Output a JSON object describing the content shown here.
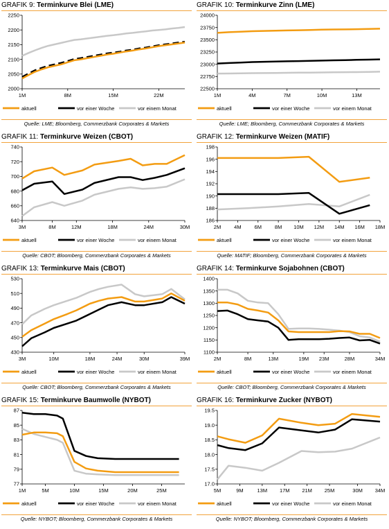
{
  "legend": {
    "aktuell": "aktuell",
    "week": "vor einer Woche",
    "month": "vor einem Monat"
  },
  "colors": {
    "aktuell": "#f39c12",
    "week": "#000000",
    "month": "#c8c8c8",
    "accent": "#f2a23a"
  },
  "chart_data": [
    {
      "type": "line",
      "label": "GRAFIK 9:",
      "title": "Terminkurve Blei (LME)",
      "source": "Quelle: LME; Bloomberg, Commerzbank Corporates & Markets",
      "ylim": [
        2000,
        2250
      ],
      "yticks": [
        2000,
        2050,
        2100,
        2150,
        2200,
        2250
      ],
      "xlim": [
        1,
        26
      ],
      "xticks": [
        1,
        8,
        15,
        22
      ],
      "xticklabels": [
        "1M",
        "8M",
        "15M",
        "22M"
      ],
      "series": [
        {
          "name": "aktuell",
          "x": [
            1,
            2,
            3,
            4,
            5,
            6,
            7,
            8,
            9,
            10,
            11,
            12,
            13,
            14,
            15,
            16,
            17,
            18,
            19,
            20,
            21,
            22,
            23,
            24,
            25,
            26
          ],
          "y": [
            2035,
            2047,
            2058,
            2066,
            2073,
            2078,
            2083,
            2090,
            2097,
            2100,
            2104,
            2108,
            2112,
            2116,
            2119,
            2123,
            2127,
            2130,
            2134,
            2137,
            2141,
            2145,
            2148,
            2151,
            2154,
            2157
          ]
        },
        {
          "name": "vor einer Woche",
          "dash": true,
          "x": [
            1,
            2,
            3,
            4,
            5,
            6,
            7,
            8,
            9,
            10,
            11,
            12,
            13,
            14,
            15,
            16,
            17,
            18,
            19,
            20,
            21,
            22,
            23,
            24,
            25,
            26
          ],
          "y": [
            2040,
            2052,
            2063,
            2071,
            2078,
            2083,
            2088,
            2094,
            2101,
            2104,
            2108,
            2112,
            2116,
            2120,
            2123,
            2126,
            2130,
            2133,
            2137,
            2140,
            2144,
            2148,
            2151,
            2154,
            2157,
            2160
          ]
        },
        {
          "name": "vor einem Monat",
          "x": [
            1,
            2,
            3,
            4,
            5,
            6,
            7,
            8,
            9,
            10,
            11,
            12,
            13,
            14,
            15,
            16,
            17,
            18,
            19,
            20,
            21,
            22,
            23,
            24,
            25,
            26
          ],
          "y": [
            2112,
            2122,
            2131,
            2139,
            2146,
            2151,
            2156,
            2161,
            2166,
            2168,
            2171,
            2174,
            2177,
            2180,
            2182,
            2185,
            2188,
            2190,
            2193,
            2195,
            2198,
            2200,
            2202,
            2205,
            2207,
            2210
          ]
        }
      ]
    },
    {
      "type": "line",
      "label": "GRAFIK 10:",
      "title": "Terminkurve Zinn (LME)",
      "source": "Quelle: LME; Bloomberg, Commerzbank Corporates & Markets",
      "ylim": [
        22500,
        24000
      ],
      "yticks": [
        22500,
        22750,
        23000,
        23250,
        23500,
        23750,
        24000
      ],
      "xlim": [
        1,
        15
      ],
      "xticks": [
        1,
        4,
        7,
        10,
        13
      ],
      "xticklabels": [
        "1M",
        "4M",
        "7M",
        "10M",
        "13M"
      ],
      "series": [
        {
          "name": "aktuell",
          "x": [
            1,
            2,
            3,
            4,
            5,
            6,
            7,
            8,
            9,
            10,
            11,
            12,
            13,
            14,
            15
          ],
          "y": [
            23640,
            23655,
            23665,
            23675,
            23680,
            23685,
            23690,
            23695,
            23700,
            23705,
            23710,
            23712,
            23715,
            23720,
            23725
          ]
        },
        {
          "name": "vor einer Woche",
          "x": [
            1,
            2,
            3,
            4,
            5,
            6,
            7,
            8,
            9,
            10,
            11,
            12,
            13,
            14,
            15
          ],
          "y": [
            23015,
            23025,
            23035,
            23045,
            23050,
            23055,
            23060,
            23065,
            23070,
            23075,
            23080,
            23085,
            23090,
            23095,
            23100
          ]
        },
        {
          "name": "vor einem Monat",
          "x": [
            1,
            2,
            3,
            4,
            5,
            6,
            7,
            8,
            9,
            10,
            11,
            12,
            13,
            14,
            15
          ],
          "y": [
            22810,
            22812,
            22815,
            22818,
            22820,
            22823,
            22825,
            22828,
            22830,
            22833,
            22835,
            22838,
            22840,
            22843,
            22848
          ]
        }
      ]
    },
    {
      "type": "line",
      "label": "GRAFIK 11:",
      "title": "Terminkurve Weizen (CBOT)",
      "source": "Quelle: CBOT; Bloomberg, Commerzbank Corporates & Markets",
      "ylim": [
        640,
        740
      ],
      "yticks": [
        640,
        660,
        680,
        700,
        720,
        740
      ],
      "xlim": [
        3,
        30
      ],
      "xticks": [
        3,
        8,
        12,
        18,
        24,
        30
      ],
      "xticklabels": [
        "3M",
        "8M",
        "12M",
        "18M",
        "24M",
        "30M"
      ],
      "series": [
        {
          "name": "aktuell",
          "x": [
            3,
            5,
            8,
            10,
            13,
            15,
            19,
            21,
            23,
            25,
            27,
            30
          ],
          "y": [
            697,
            707,
            712,
            702,
            708,
            716,
            721,
            724,
            715,
            717,
            717,
            729
          ]
        },
        {
          "name": "vor einer Woche",
          "x": [
            3,
            5,
            8,
            10,
            13,
            15,
            19,
            21,
            23,
            25,
            27,
            30
          ],
          "y": [
            681,
            690,
            693,
            676,
            682,
            691,
            699,
            699,
            695,
            698,
            702,
            711
          ]
        },
        {
          "name": "vor einem Monat",
          "x": [
            3,
            5,
            8,
            10,
            13,
            15,
            19,
            21,
            23,
            25,
            27,
            30
          ],
          "y": [
            646,
            658,
            665,
            660,
            667,
            675,
            683,
            685,
            683,
            684,
            686,
            696
          ]
        }
      ]
    },
    {
      "type": "line",
      "label": "GRAFIK 12:",
      "title": "Terminkurve Weizen (MATIF)",
      "source": "Quelle: MATIF; Bloomberg, Commerzbank Corporates & Markets",
      "ylim": [
        186,
        198
      ],
      "yticks": [
        186,
        188,
        190,
        192,
        194,
        196,
        198
      ],
      "xlim": [
        2,
        18
      ],
      "xticks": [
        2,
        4,
        6,
        8,
        10,
        12,
        14,
        16,
        18
      ],
      "xticklabels": [
        "2M",
        "4M",
        "6M",
        "8M",
        "10M",
        "12M",
        "14M",
        "16M",
        "18M"
      ],
      "series": [
        {
          "name": "aktuell",
          "x": [
            2,
            5,
            8,
            11,
            14,
            17
          ],
          "y": [
            196.2,
            196.2,
            196.2,
            196.4,
            192.3,
            193.0
          ]
        },
        {
          "name": "vor einer Woche",
          "x": [
            2,
            5,
            8,
            11,
            14,
            17
          ],
          "y": [
            190.3,
            190.3,
            190.3,
            190.5,
            187.1,
            188.5
          ]
        },
        {
          "name": "vor einem Monat",
          "x": [
            2,
            5,
            8,
            11,
            14,
            17
          ],
          "y": [
            187.8,
            188.0,
            188.3,
            188.7,
            188.3,
            190.2
          ]
        }
      ]
    },
    {
      "type": "line",
      "label": "GRAFIK 13:",
      "title": "Terminkurve Mais (CBOT)",
      "source": "Quelle: CBOT; Bloomberg, Commerzbank Corporates & Markets",
      "ylim": [
        430,
        530
      ],
      "yticks": [
        430,
        450,
        470,
        490,
        510,
        530
      ],
      "xlim": [
        3,
        39
      ],
      "xticks": [
        3,
        10,
        18,
        24,
        30,
        39
      ],
      "xticklabels": [
        "3M",
        "10M",
        "18M",
        "24M",
        "30M",
        "39M"
      ],
      "series": [
        {
          "name": "aktuell",
          "x": [
            3,
            5,
            8,
            10,
            13,
            15,
            18,
            20,
            22,
            25,
            28,
            30,
            34,
            36,
            39
          ],
          "y": [
            451,
            460,
            469,
            475,
            482,
            487,
            496,
            500,
            503,
            505,
            499,
            499,
            503,
            510,
            500
          ]
        },
        {
          "name": "vor einer Woche",
          "x": [
            3,
            5,
            8,
            10,
            13,
            15,
            18,
            20,
            22,
            25,
            28,
            30,
            34,
            36,
            39
          ],
          "y": [
            438,
            449,
            457,
            463,
            469,
            473,
            482,
            488,
            494,
            498,
            494,
            494,
            498,
            505,
            496
          ]
        },
        {
          "name": "vor einem Monat",
          "x": [
            3,
            5,
            8,
            10,
            13,
            15,
            18,
            20,
            22,
            25,
            28,
            30,
            34,
            36,
            39
          ],
          "y": [
            468,
            480,
            489,
            494,
            500,
            504,
            512,
            516,
            519,
            522,
            509,
            506,
            509,
            516,
            502
          ]
        }
      ]
    },
    {
      "type": "line",
      "label": "GRAFIK 14:",
      "title": "Terminkurve Sojabohnen (CBOT)",
      "source": "Quelle: CBOT; Bloomberg, Commerzbank Corporates & Markets",
      "ylim": [
        1100,
        1400
      ],
      "yticks": [
        1100,
        1150,
        1200,
        1250,
        1300,
        1350,
        1400
      ],
      "xlim": [
        2,
        34
      ],
      "xticks": [
        2,
        8,
        13,
        19,
        23,
        28,
        34
      ],
      "xticklabels": [
        "2M",
        "8M",
        "13M",
        "19M",
        "23M",
        "28M",
        "34M"
      ],
      "series": [
        {
          "name": "aktuell",
          "x": [
            2,
            4,
            6,
            8,
            10,
            12,
            14,
            16,
            18,
            20,
            22,
            24,
            26,
            28,
            30,
            32,
            34
          ],
          "y": [
            1303,
            1303,
            1295,
            1277,
            1270,
            1262,
            1230,
            1185,
            1182,
            1182,
            1182,
            1182,
            1186,
            1185,
            1175,
            1175,
            1158
          ]
        },
        {
          "name": "vor einer Woche",
          "x": [
            2,
            4,
            6,
            8,
            10,
            12,
            14,
            16,
            18,
            20,
            22,
            24,
            26,
            28,
            30,
            32,
            34
          ],
          "y": [
            1268,
            1270,
            1255,
            1235,
            1230,
            1225,
            1200,
            1150,
            1153,
            1153,
            1153,
            1155,
            1158,
            1160,
            1148,
            1150,
            1135
          ]
        },
        {
          "name": "vor einem Monat",
          "x": [
            2,
            4,
            6,
            8,
            10,
            12,
            14,
            16,
            18,
            20,
            22,
            24,
            26,
            28,
            30,
            32,
            34
          ],
          "y": [
            1355,
            1355,
            1340,
            1310,
            1303,
            1300,
            1255,
            1195,
            1197,
            1197,
            1195,
            1192,
            1188,
            1182,
            1165,
            1160,
            1143
          ]
        }
      ]
    },
    {
      "type": "line",
      "label": "GRAFIK 15:",
      "title": "Terminkurve Baumwolle (NYBOT)",
      "source": "Quelle: NYBOT; Bloomberg, Commerzbank Corporates & Markets",
      "ylim": [
        77,
        87
      ],
      "yticks": [
        77,
        79,
        81,
        83,
        85,
        87
      ],
      "xlim": [
        1,
        29
      ],
      "xticks": [
        1,
        5,
        10,
        15,
        20,
        25
      ],
      "xticklabels": [
        "1M",
        "5M",
        "10M",
        "15M",
        "20M",
        "25M"
      ],
      "series": [
        {
          "name": "aktuell",
          "x": [
            1,
            3,
            5,
            7,
            8,
            10,
            12,
            14,
            17,
            20,
            24,
            28
          ],
          "y": [
            83.7,
            84.0,
            84.0,
            83.9,
            83.5,
            80.0,
            79.1,
            78.8,
            78.6,
            78.6,
            78.6,
            78.6
          ]
        },
        {
          "name": "vor einer Woche",
          "x": [
            1,
            3,
            5,
            7,
            8,
            10,
            12,
            14,
            17,
            20,
            24,
            28
          ],
          "y": [
            86.7,
            86.5,
            86.5,
            86.3,
            85.9,
            81.5,
            80.8,
            80.5,
            80.4,
            80.4,
            80.4,
            80.4
          ]
        },
        {
          "name": "vor einem Monat",
          "x": [
            1,
            3,
            5,
            7,
            8,
            10,
            12,
            14,
            17,
            20,
            24,
            28
          ],
          "y": [
            84.5,
            83.8,
            83.4,
            83.0,
            82.6,
            78.8,
            78.4,
            78.3,
            78.2,
            78.2,
            78.2,
            78.2
          ]
        }
      ]
    },
    {
      "type": "line",
      "label": "GRAFIK 16:",
      "title": "Terminkurve Zucker (NYBOT)",
      "source": "Quelle: NYBOT; Bloomberg, Commerzbank Corporates & Markets",
      "ylim": [
        17.0,
        19.5
      ],
      "yticks": [
        17.0,
        17.5,
        18.0,
        18.5,
        19.0,
        19.5
      ],
      "xlim": [
        5,
        34
      ],
      "xticks": [
        5,
        9,
        13,
        17,
        21,
        25,
        30,
        34
      ],
      "xticklabels": [
        "5M",
        "9M",
        "13M",
        "17M",
        "21M",
        "25M",
        "30M",
        "34M"
      ],
      "series": [
        {
          "name": "aktuell",
          "x": [
            5,
            7,
            10,
            13,
            16,
            20,
            23,
            26,
            29,
            34
          ],
          "y": [
            18.62,
            18.52,
            18.4,
            18.65,
            19.22,
            19.08,
            19.0,
            19.05,
            19.38,
            19.28
          ]
        },
        {
          "name": "vor einer Woche",
          "x": [
            5,
            7,
            10,
            13,
            16,
            20,
            23,
            26,
            29,
            34
          ],
          "y": [
            18.32,
            18.22,
            18.15,
            18.38,
            18.92,
            18.82,
            18.75,
            18.85,
            19.2,
            19.12
          ]
        },
        {
          "name": "vor einem Monat",
          "x": [
            5,
            7,
            10,
            13,
            16,
            20,
            23,
            26,
            29,
            34
          ],
          "y": [
            17.15,
            17.62,
            17.55,
            17.45,
            17.72,
            18.12,
            18.08,
            18.1,
            18.2,
            18.58
          ]
        }
      ]
    }
  ]
}
